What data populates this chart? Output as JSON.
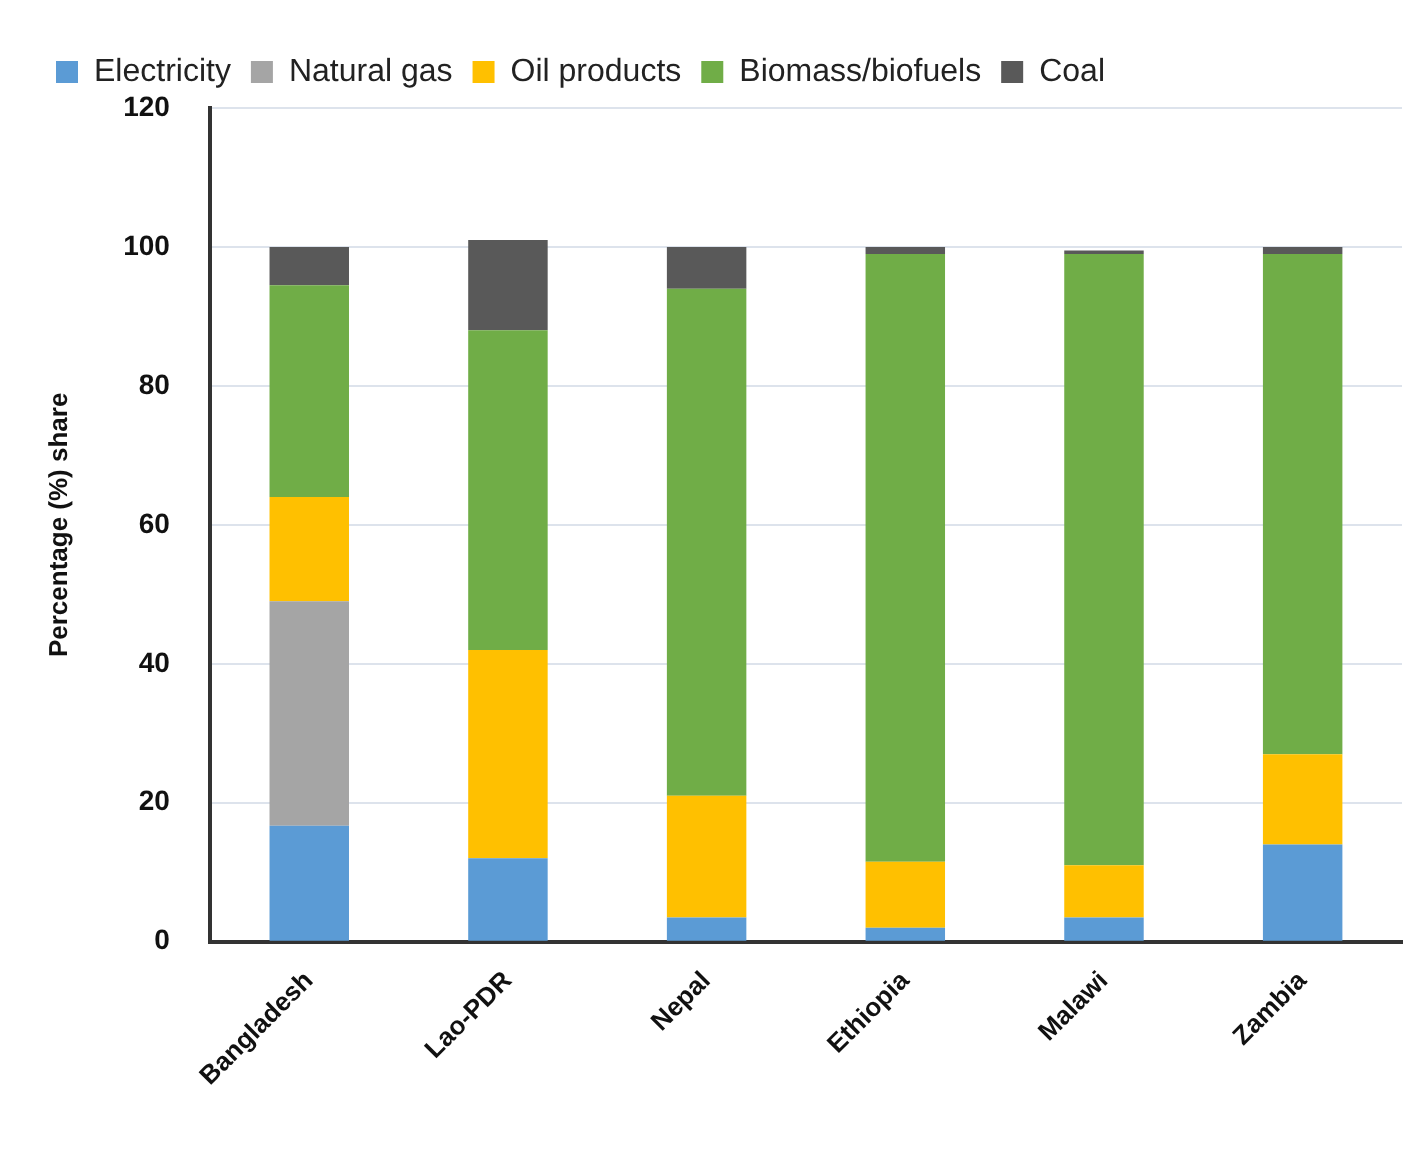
{
  "chart_data": {
    "type": "bar",
    "stacked": true,
    "ylabel": "Percentage (%) share",
    "categories": [
      "Bangladesh",
      "Lao-PDR",
      "Nepal",
      "Ethiopia",
      "Malawi",
      "Zambia"
    ],
    "series": [
      {
        "name": "Electricity",
        "color": "#5b9bd5",
        "values": [
          16.7,
          12,
          3.5,
          2,
          3.5,
          14
        ]
      },
      {
        "name": "Natural gas",
        "color": "#a5a5a5",
        "values": [
          32.3,
          0,
          0,
          0,
          0,
          0
        ]
      },
      {
        "name": "Oil products",
        "color": "#ffc000",
        "values": [
          15,
          30,
          17.5,
          9.5,
          7.5,
          13
        ]
      },
      {
        "name": "Biomass/biofuels",
        "color": "#70ad47",
        "values": [
          30.5,
          46,
          73,
          87.5,
          88,
          72
        ]
      },
      {
        "name": "Coal",
        "color": "#595959",
        "values": [
          5.5,
          13,
          6,
          1,
          0.5,
          1
        ]
      }
    ],
    "ylim": [
      0,
      120
    ],
    "yticks": [
      0,
      20,
      40,
      60,
      80,
      100,
      120
    ],
    "grid": "y",
    "legend": "top"
  }
}
